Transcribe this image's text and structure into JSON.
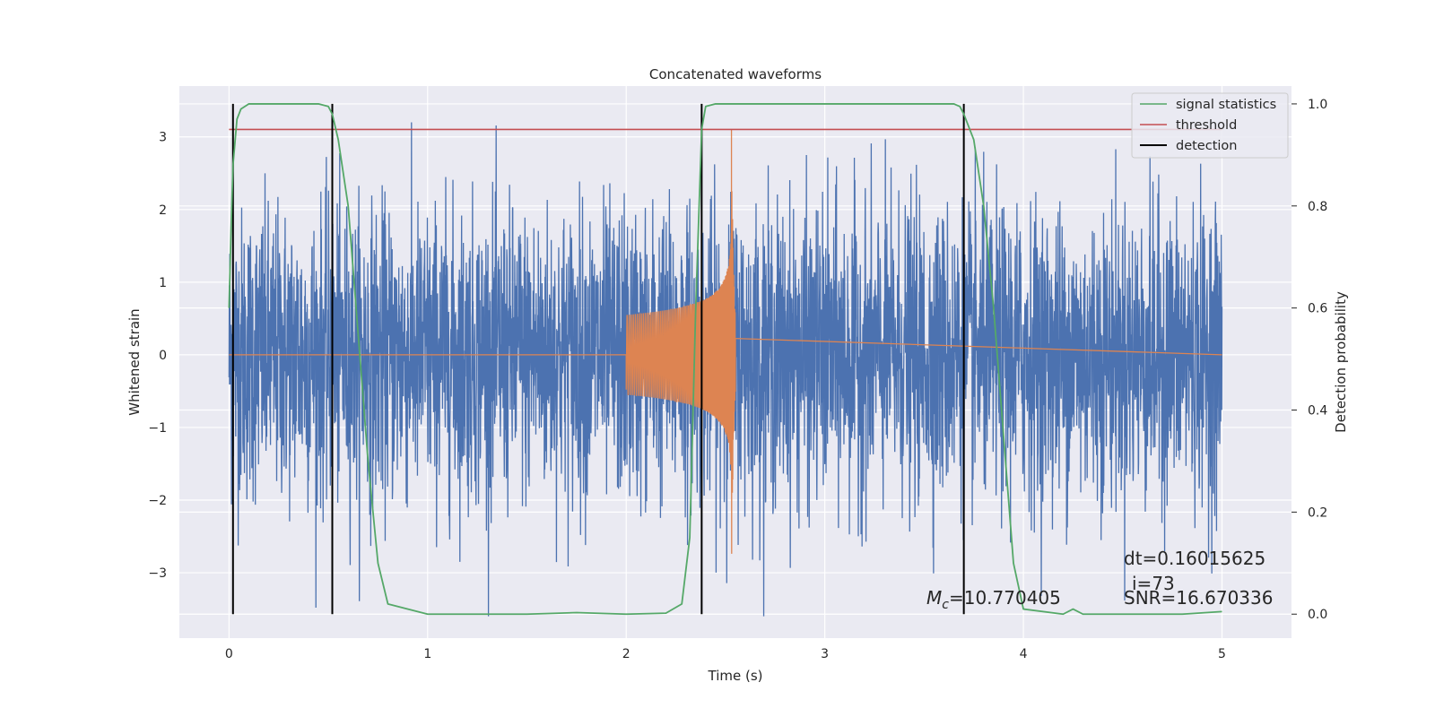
{
  "chart_data": {
    "type": "line",
    "title": "Concatenated waveforms",
    "xlabel": "Time (s)",
    "ylabel": "Whitened strain",
    "ylabel_right": "Detection probability",
    "xlim": [
      -0.25,
      5.35
    ],
    "ylim": [
      -3.9,
      3.7
    ],
    "ylim_right": [
      -0.047,
      1.035
    ],
    "x_ticks": [
      0,
      1,
      2,
      3,
      4,
      5
    ],
    "y_ticks": [
      -3,
      -2,
      -1,
      0,
      1,
      2,
      3
    ],
    "y_ticks_right": [
      0.0,
      0.2,
      0.4,
      0.6,
      0.8,
      1.0
    ],
    "x_tick_labels": [
      "0",
      "1",
      "2",
      "3",
      "4",
      "5"
    ],
    "y_tick_labels": [
      "−3",
      "−2",
      "−1",
      "0",
      "1",
      "2",
      "3"
    ],
    "y_tick_labels_right": [
      "0.0",
      "0.2",
      "0.4",
      "0.6",
      "0.8",
      "1.0"
    ],
    "grid": true,
    "legend_position": "top-right",
    "series": [
      {
        "name": "",
        "axis": "left",
        "color": "#4c72b0",
        "style": "noise",
        "x_range": [
          0,
          5
        ],
        "amplitude_range": [
          -3.6,
          3.2
        ]
      },
      {
        "name": "",
        "axis": "left",
        "color": "#dd8452",
        "style": "chirp",
        "x_range": [
          2.0,
          2.55
        ],
        "x_zero": [
          0,
          5
        ],
        "peak_time": 2.53,
        "peak_amplitude": 3.1,
        "min_amplitude": -2.8
      },
      {
        "name": "signal statistics",
        "axis": "right",
        "color": "#55a868",
        "x": [
          0,
          0.01,
          0.02,
          0.04,
          0.06,
          0.1,
          0.2,
          0.3,
          0.4,
          0.45,
          0.5,
          0.52,
          0.55,
          0.6,
          0.65,
          0.7,
          0.75,
          0.8,
          1.0,
          1.5,
          1.75,
          2.0,
          2.2,
          2.28,
          2.32,
          2.35,
          2.38,
          2.4,
          2.45,
          2.5,
          3.0,
          3.5,
          3.65,
          3.68,
          3.7,
          3.75,
          3.8,
          3.85,
          3.9,
          3.95,
          4.0,
          4.2,
          4.25,
          4.3,
          4.5,
          4.8,
          5.0
        ],
        "y": [
          0.6,
          0.75,
          0.88,
          0.97,
          0.99,
          1.0,
          1.0,
          1.0,
          1.0,
          1.0,
          0.995,
          0.98,
          0.93,
          0.8,
          0.55,
          0.3,
          0.1,
          0.02,
          0.0,
          0.0,
          0.003,
          0.0,
          0.002,
          0.02,
          0.15,
          0.6,
          0.95,
          0.995,
          1.0,
          1.0,
          1.0,
          1.0,
          1.0,
          0.995,
          0.98,
          0.93,
          0.8,
          0.6,
          0.35,
          0.1,
          0.01,
          0.0,
          0.01,
          0.0,
          0.0,
          0.0,
          0.005
        ]
      },
      {
        "name": "threshold",
        "axis": "right",
        "color": "#c44e52",
        "x": [
          0,
          5.0
        ],
        "y": [
          0.95,
          0.95
        ]
      }
    ],
    "detections": {
      "name": "detection",
      "color": "#000000",
      "x": [
        0.02,
        0.52,
        2.38,
        3.7
      ],
      "y_range": [
        0.0,
        1.0
      ]
    },
    "annotations": {
      "mc": "M",
      "mc_sub": "c",
      "mc_value": "=10.770405",
      "dt": "dt=0.16015625",
      "i": "i=73",
      "snr": "SNR=16.670336"
    }
  }
}
